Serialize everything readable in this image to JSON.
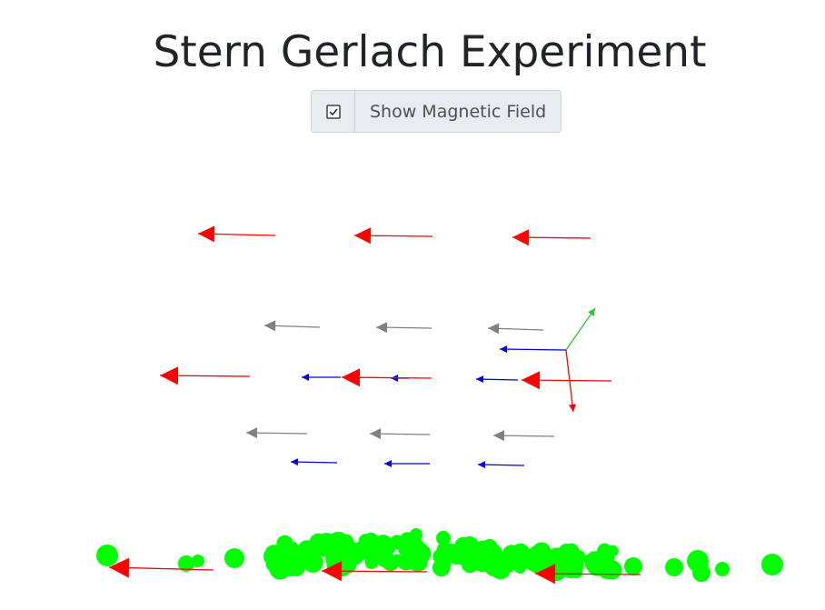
{
  "header": {
    "title": "Stern Gerlach Experiment"
  },
  "controls": {
    "toggle_label": "Show Magnetic Field"
  }
}
